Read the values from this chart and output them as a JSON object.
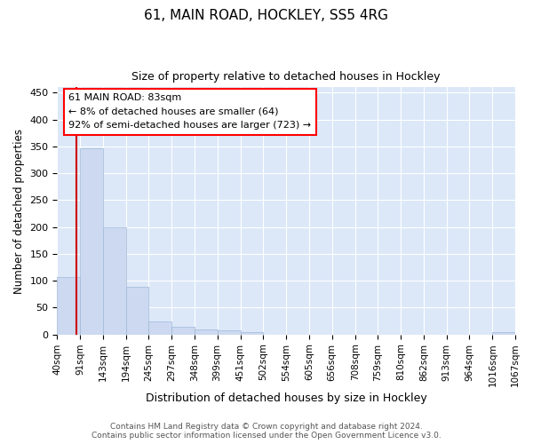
{
  "title1": "61, MAIN ROAD, HOCKLEY, SS5 4RG",
  "title2": "Size of property relative to detached houses in Hockley",
  "xlabel": "Distribution of detached houses by size in Hockley",
  "ylabel": "Number of detached properties",
  "annotation_line1": "61 MAIN ROAD: 83sqm",
  "annotation_line2": "← 8% of detached houses are smaller (64)",
  "annotation_line3": "92% of semi-detached houses are larger (723) →",
  "bin_edges": [
    40,
    91,
    143,
    194,
    245,
    297,
    348,
    399,
    451,
    502,
    554,
    605,
    656,
    708,
    759,
    810,
    862,
    913,
    964,
    1016,
    1067
  ],
  "bin_counts": [
    107,
    347,
    200,
    88,
    24,
    15,
    9,
    8,
    5,
    0,
    0,
    0,
    0,
    0,
    0,
    0,
    0,
    0,
    0,
    5
  ],
  "bar_color": "#ccd9f0",
  "bar_edge_color": "#a0b8d8",
  "vline_x": 83,
  "vline_color": "#cc0000",
  "fig_background_color": "#ffffff",
  "plot_background_color": "#dce8f8",
  "ylim": [
    0,
    460
  ],
  "yticks": [
    0,
    50,
    100,
    150,
    200,
    250,
    300,
    350,
    400,
    450
  ],
  "tick_labels": [
    "40sqm",
    "91sqm",
    "143sqm",
    "194sqm",
    "245sqm",
    "297sqm",
    "348sqm",
    "399sqm",
    "451sqm",
    "502sqm",
    "554sqm",
    "605sqm",
    "656sqm",
    "708sqm",
    "759sqm",
    "810sqm",
    "862sqm",
    "913sqm",
    "964sqm",
    "1016sqm",
    "1067sqm"
  ],
  "footer": "Contains HM Land Registry data © Crown copyright and database right 2024.\nContains public sector information licensed under the Open Government Licence v3.0.",
  "grid_color": "#ffffff"
}
